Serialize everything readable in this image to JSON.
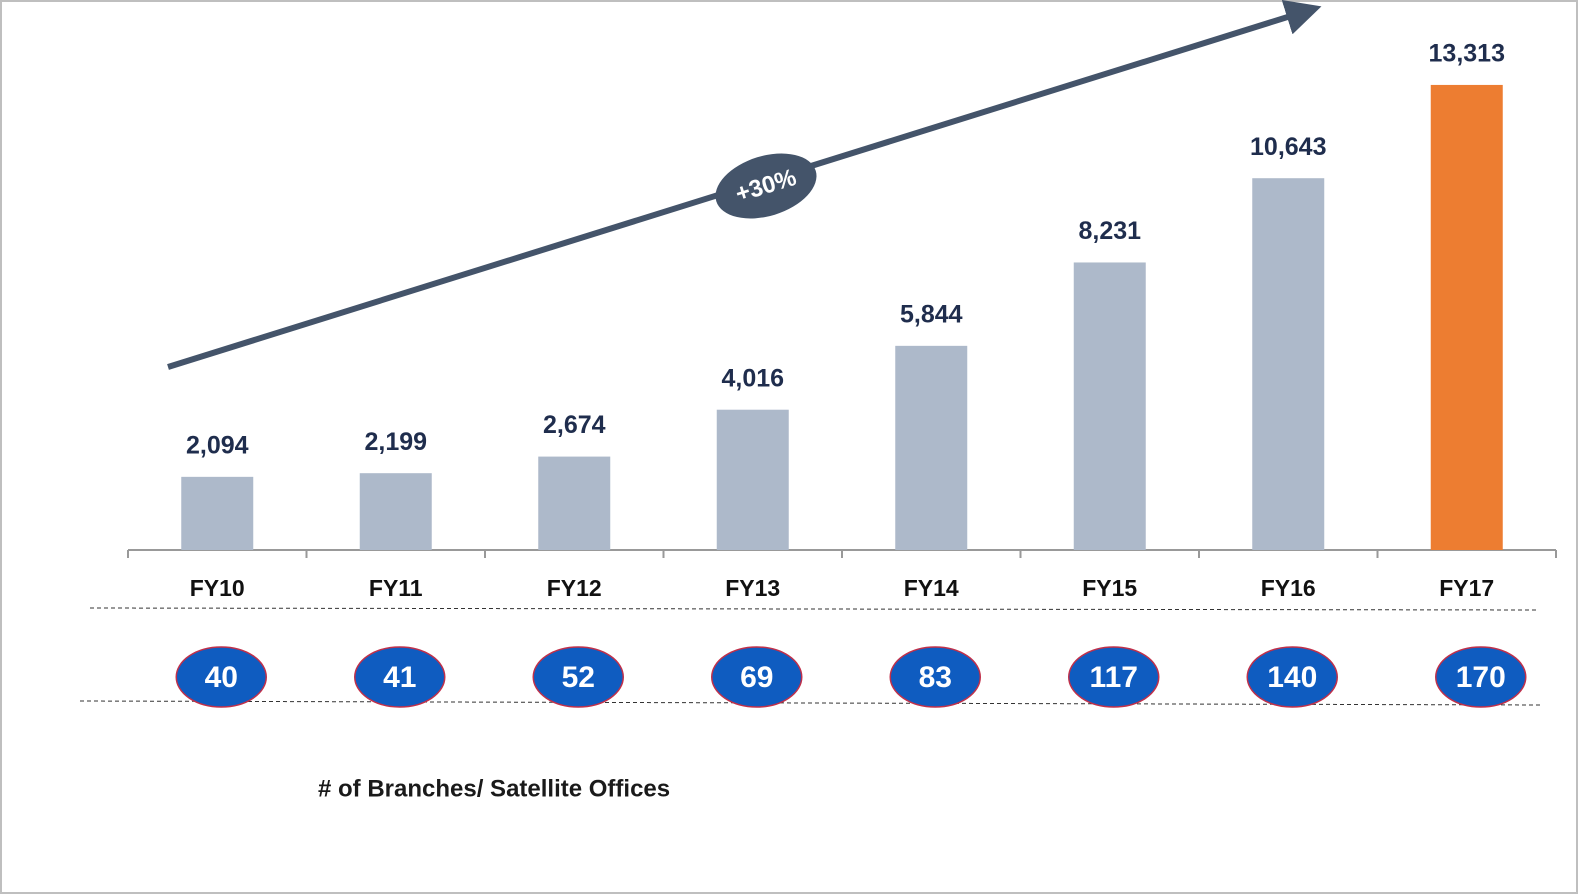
{
  "chart_data": {
    "type": "bar",
    "categories": [
      "FY10",
      "FY11",
      "FY12",
      "FY13",
      "FY14",
      "FY15",
      "FY16",
      "FY17"
    ],
    "values": [
      2094,
      2199,
      2674,
      4016,
      5844,
      8231,
      10643,
      13313
    ],
    "value_labels": [
      "2,094",
      "2,199",
      "2,674",
      "4,016",
      "5,844",
      "8,231",
      "10,643",
      "13,313"
    ],
    "colors": [
      "#adb9ca",
      "#adb9ca",
      "#adb9ca",
      "#adb9ca",
      "#adb9ca",
      "#adb9ca",
      "#adb9ca",
      "#ed7d31"
    ],
    "ylim": [
      0,
      15000
    ],
    "annotation": "+30%",
    "branches": {
      "name": "# of Branches/ Satellite Offices",
      "values": [
        40,
        41,
        52,
        69,
        83,
        117,
        140,
        170
      ]
    }
  }
}
